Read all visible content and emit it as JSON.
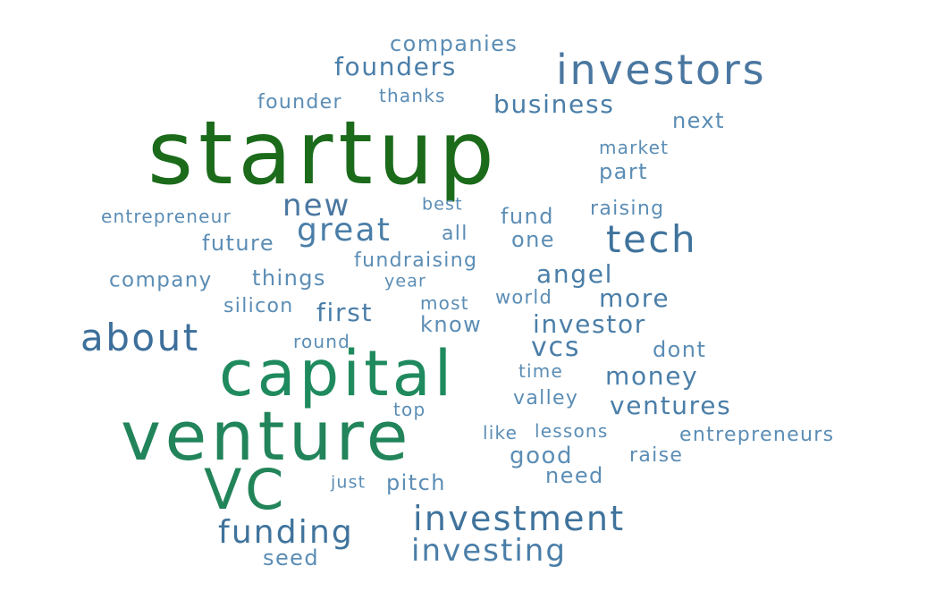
{
  "words": [
    {
      "text": "startup",
      "color": "#1b6b1b"
    },
    {
      "text": "venture",
      "color": "#22845a"
    },
    {
      "text": "capital",
      "color": "#1f8a5e"
    },
    {
      "text": "VC",
      "color": "#228459"
    },
    {
      "text": "investors",
      "color": "#4a77a0"
    },
    {
      "text": "investment",
      "color": "#3f739c"
    },
    {
      "text": "tech",
      "color": "#3f739c"
    },
    {
      "text": "about",
      "color": "#3d6f9b"
    },
    {
      "text": "funding",
      "color": "#3f739c"
    },
    {
      "text": "investing",
      "color": "#4a7ea8"
    },
    {
      "text": "great",
      "color": "#4a7ea8"
    },
    {
      "text": "new",
      "color": "#4a77a0"
    },
    {
      "text": "founders",
      "color": "#4a7ea8"
    },
    {
      "text": "business",
      "color": "#4a7ea8"
    },
    {
      "text": "companies",
      "color": "#5b8db5"
    },
    {
      "text": "investor",
      "color": "#4a7ea8"
    },
    {
      "text": "vcs",
      "color": "#4a7ea8"
    },
    {
      "text": "money",
      "color": "#4a7ea8"
    },
    {
      "text": "ventures",
      "color": "#4a7ea8"
    },
    {
      "text": "angel",
      "color": "#4a7ea8"
    },
    {
      "text": "more",
      "color": "#4a7ea8"
    },
    {
      "text": "first",
      "color": "#4a7ea8"
    },
    {
      "text": "founder",
      "color": "#5b8db5"
    },
    {
      "text": "thanks",
      "color": "#5b8db5"
    },
    {
      "text": "next",
      "color": "#5b8db5"
    },
    {
      "text": "market",
      "color": "#5b8db5"
    },
    {
      "text": "part",
      "color": "#5b8db5"
    },
    {
      "text": "entrepreneur",
      "color": "#5b8db5"
    },
    {
      "text": "best",
      "color": "#5b8db5"
    },
    {
      "text": "fund",
      "color": "#5b8db5"
    },
    {
      "text": "raising",
      "color": "#5b8db5"
    },
    {
      "text": "future",
      "color": "#5b8db5"
    },
    {
      "text": "all",
      "color": "#5b8db5"
    },
    {
      "text": "one",
      "color": "#5b8db5"
    },
    {
      "text": "fundraising",
      "color": "#5b8db5"
    },
    {
      "text": "company",
      "color": "#5b8db5"
    },
    {
      "text": "things",
      "color": "#5b8db5"
    },
    {
      "text": "year",
      "color": "#5b8db5"
    },
    {
      "text": "most",
      "color": "#5b8db5"
    },
    {
      "text": "world",
      "color": "#5b8db5"
    },
    {
      "text": "silicon",
      "color": "#5b8db5"
    },
    {
      "text": "know",
      "color": "#5b8db5"
    },
    {
      "text": "round",
      "color": "#5b8db5"
    },
    {
      "text": "dont",
      "color": "#5b8db5"
    },
    {
      "text": "time",
      "color": "#5b8db5"
    },
    {
      "text": "valley",
      "color": "#5b8db5"
    },
    {
      "text": "top",
      "color": "#5b8db5"
    },
    {
      "text": "like",
      "color": "#5b8db5"
    },
    {
      "text": "lessons",
      "color": "#5b8db5"
    },
    {
      "text": "entrepreneurs",
      "color": "#5b8db5"
    },
    {
      "text": "good",
      "color": "#5b8db5"
    },
    {
      "text": "raise",
      "color": "#5b8db5"
    },
    {
      "text": "need",
      "color": "#5b8db5"
    },
    {
      "text": "just",
      "color": "#5b8db5"
    },
    {
      "text": "pitch",
      "color": "#5b8db5"
    },
    {
      "text": "seed",
      "color": "#5b8db5"
    }
  ]
}
